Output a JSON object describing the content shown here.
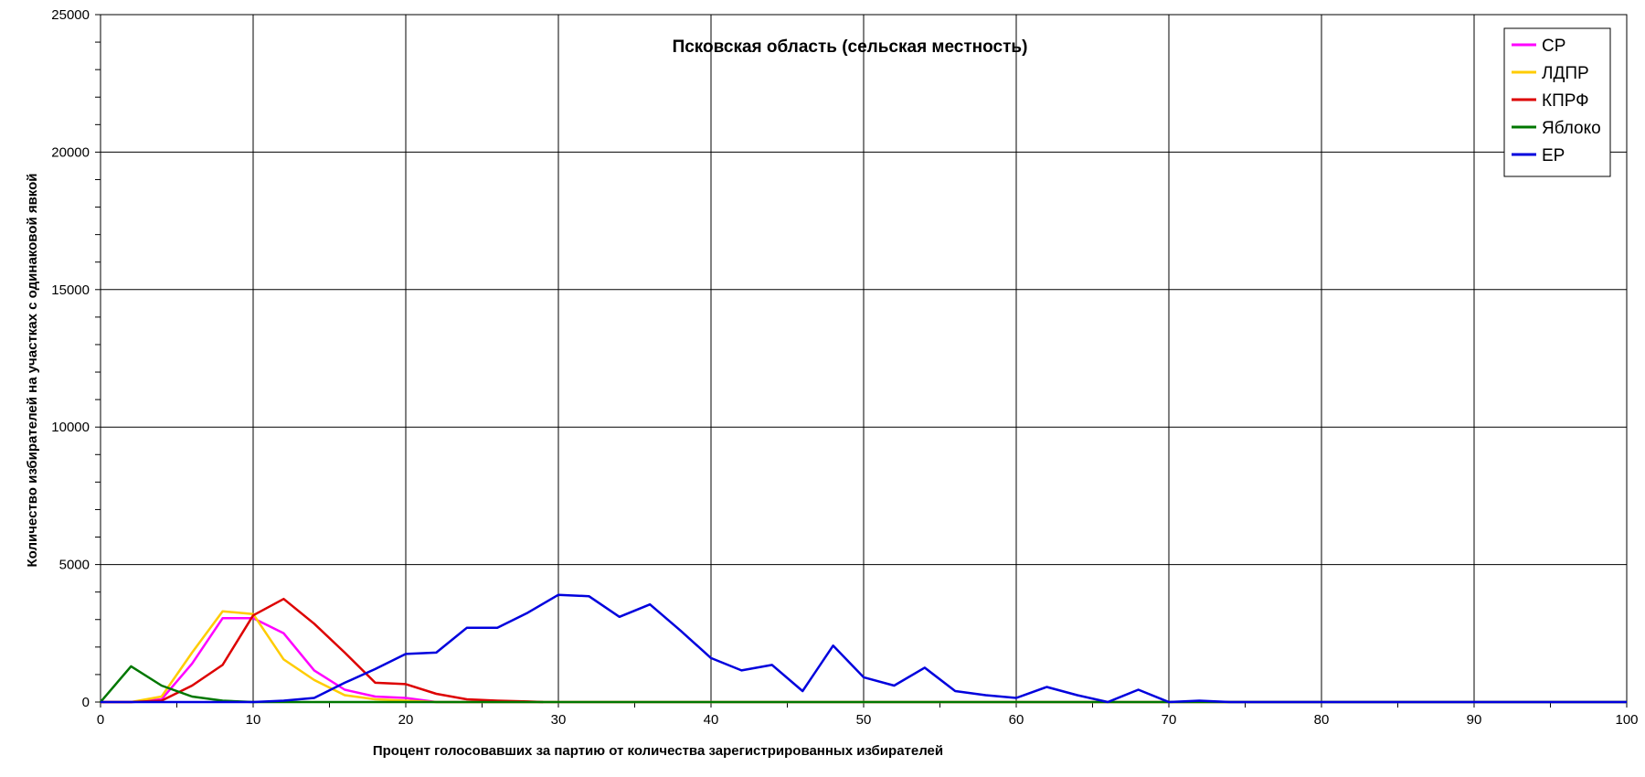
{
  "chart_data": {
    "type": "line",
    "title": "Псковская область (сельская местность)",
    "xlabel": "Процент голосовавших за партию от количества зарегистрированных избирателей",
    "ylabel": "Количество избирателей на участках с одинаковой явкой",
    "xlim": [
      0,
      100
    ],
    "ylim": [
      0,
      25000
    ],
    "xticks": [
      0,
      10,
      20,
      30,
      40,
      50,
      60,
      70,
      80,
      90,
      100
    ],
    "yticks": [
      0,
      5000,
      10000,
      15000,
      20000,
      25000
    ],
    "grid": true,
    "legend_position": "top-right",
    "series": [
      {
        "name": "СР",
        "color": "#ff00ff",
        "x": [
          0,
          2,
          4,
          6,
          8,
          10,
          12,
          14,
          16,
          18,
          20,
          22,
          24,
          26,
          28,
          30,
          40,
          50,
          60,
          70,
          80,
          90,
          100
        ],
        "y": [
          0,
          0,
          100,
          1400,
          3050,
          3050,
          2500,
          1150,
          450,
          200,
          150,
          0,
          0,
          0,
          0,
          0,
          0,
          0,
          0,
          0,
          0,
          0,
          0
        ]
      },
      {
        "name": "ЛДПР",
        "color": "#ffcc00",
        "x": [
          0,
          2,
          4,
          6,
          8,
          10,
          12,
          14,
          16,
          18,
          20,
          22,
          24,
          26,
          28,
          30,
          40,
          50,
          60,
          70,
          80,
          90,
          100
        ],
        "y": [
          0,
          0,
          200,
          1800,
          3300,
          3200,
          1550,
          800,
          250,
          100,
          50,
          0,
          0,
          0,
          0,
          0,
          0,
          0,
          0,
          0,
          0,
          0,
          0
        ]
      },
      {
        "name": "КПРФ",
        "color": "#dd0000",
        "x": [
          0,
          2,
          4,
          6,
          8,
          10,
          12,
          14,
          16,
          18,
          20,
          22,
          24,
          26,
          28,
          29
        ],
        "y": [
          0,
          0,
          50,
          600,
          1350,
          3150,
          3750,
          2850,
          1800,
          700,
          650,
          300,
          100,
          50,
          20,
          0
        ]
      },
      {
        "name": "Яблоко",
        "color": "#007700",
        "x": [
          0,
          2,
          4,
          6,
          8,
          10,
          12,
          14,
          16,
          18,
          20,
          30,
          40,
          50,
          60,
          70,
          80,
          90,
          100
        ],
        "y": [
          0,
          1300,
          600,
          200,
          50,
          0,
          0,
          0,
          0,
          0,
          0,
          0,
          0,
          0,
          0,
          0,
          0,
          0,
          0
        ]
      },
      {
        "name": "ЕР",
        "color": "#0000dd",
        "x": [
          0,
          2,
          4,
          6,
          8,
          10,
          12,
          14,
          16,
          18,
          20,
          22,
          24,
          26,
          28,
          30,
          32,
          34,
          36,
          38,
          40,
          42,
          44,
          46,
          48,
          50,
          52,
          54,
          56,
          58,
          60,
          62,
          64,
          66,
          68,
          70,
          72,
          74,
          76,
          80,
          90,
          100
        ],
        "y": [
          0,
          0,
          0,
          0,
          0,
          0,
          50,
          150,
          700,
          1200,
          1750,
          1800,
          2700,
          2700,
          3250,
          3900,
          3850,
          3100,
          3550,
          2600,
          1600,
          1150,
          1350,
          400,
          2050,
          900,
          600,
          1250,
          400,
          250,
          150,
          550,
          250,
          0,
          450,
          0,
          50,
          0,
          0,
          0,
          0,
          0
        ]
      }
    ]
  }
}
